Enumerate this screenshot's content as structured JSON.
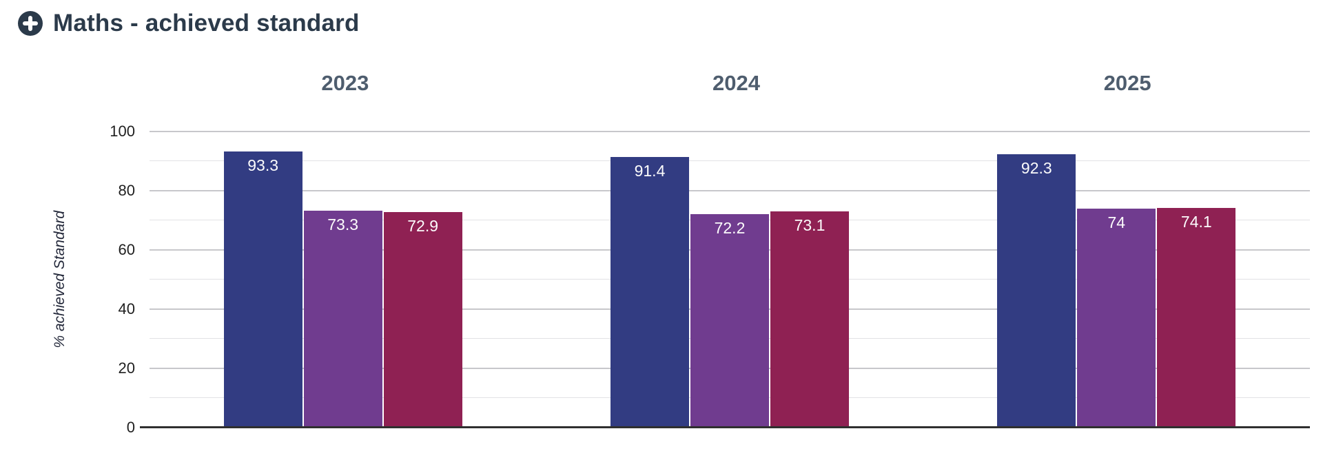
{
  "header": {
    "icon": "plus-circle-icon",
    "title": "Maths - achieved standard"
  },
  "chart_data": {
    "type": "bar",
    "title": "Maths - achieved standard",
    "categories": [
      "2023",
      "2024",
      "2025"
    ],
    "series": [
      {
        "id": "series-1",
        "color": "#323c82",
        "values": [
          93.3,
          91.4,
          92.3
        ],
        "labels": [
          "93.3",
          "91.4",
          "92.3"
        ]
      },
      {
        "id": "series-2",
        "color": "#703c8f",
        "values": [
          73.3,
          72.2,
          74.0
        ],
        "labels": [
          "73.3",
          "72.2",
          "74"
        ]
      },
      {
        "id": "series-3",
        "color": "#8f2153",
        "values": [
          72.9,
          73.1,
          74.1
        ],
        "labels": [
          "72.9",
          "73.1",
          "74.1"
        ]
      }
    ],
    "xlabel": "",
    "ylabel": "% achieved Standard",
    "ylim": [
      0,
      100
    ],
    "y_ticks": [
      100,
      80,
      60,
      40,
      20,
      0
    ],
    "gridlines": {
      "visible": true,
      "minor_step": 10,
      "major_step": 20,
      "orientation": "horizontal"
    },
    "legend": "none",
    "value_label_position": "inside-top"
  },
  "colors": {
    "background": "#ffffff",
    "title": "#2b3a4a",
    "year_label": "#4e5d6e",
    "tick_label": "#1f1f1f",
    "axis_title": "#23283a",
    "gridline_major": "#c7c7cb",
    "gridline_minor": "#e2e2e5",
    "baseline": "#2f2f2f",
    "bar_label": "#fcfcfc"
  }
}
